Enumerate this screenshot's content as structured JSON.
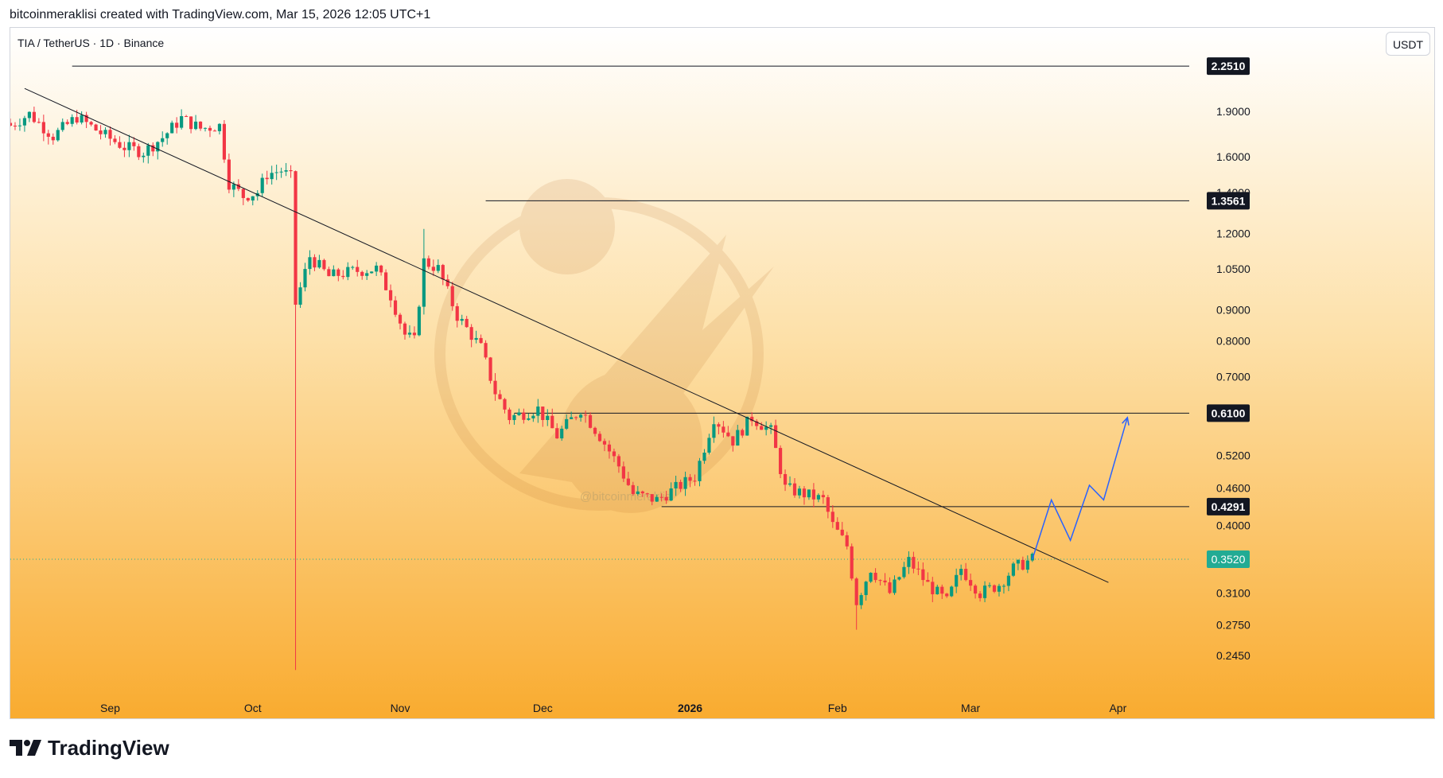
{
  "header": {
    "attribution": "bitcoinmeraklisi created with TradingView.com, Mar 15, 2026 12:05 UTC+1"
  },
  "chart": {
    "symbol": "TIA / TetherUS · 1D · Binance",
    "currency_button": "USDT",
    "watermark": "@bitcoinmeraklisi"
  },
  "footer": {
    "brand": "TradingView"
  },
  "colors": {
    "bg_top": "#ffffff",
    "bg_mid": "#fde0a8",
    "bg_bottom": "#f9ab2f",
    "up": "#089981",
    "down": "#f23645",
    "line": "#131722",
    "projection": "#2962ff",
    "current_price": "#22ab94"
  },
  "chart_data": {
    "type": "candlestick",
    "scale": "log",
    "ylim": [
      0.22,
      2.6
    ],
    "y_ticks": [
      "1.9000",
      "1.6000",
      "1.4000",
      "1.2000",
      "1.0500",
      "0.9000",
      "0.8000",
      "0.7000",
      "0.5200",
      "0.4600",
      "0.4000",
      "0.3100",
      "0.2750",
      "0.2450"
    ],
    "x_ticks": [
      {
        "label": "Sep",
        "date": "2025-09-01"
      },
      {
        "label": "Oct",
        "date": "2025-10-01"
      },
      {
        "label": "Nov",
        "date": "2025-11-01"
      },
      {
        "label": "Dec",
        "date": "2025-12-01"
      },
      {
        "label": "2026",
        "date": "2026-01-01",
        "bold": true
      },
      {
        "label": "Feb",
        "date": "2026-02-01"
      },
      {
        "label": "Mar",
        "date": "2026-03-01"
      },
      {
        "label": "Apr",
        "date": "2026-04-01"
      }
    ],
    "x_range": [
      "2025-08-11",
      "2026-04-16"
    ],
    "price_levels": [
      {
        "price": 2.251,
        "label": "2.2510",
        "from": "2025-08-24"
      },
      {
        "price": 1.3561,
        "label": "1.3561",
        "from": "2025-11-19"
      },
      {
        "price": 0.61,
        "label": "0.6100",
        "from": "2025-11-25"
      },
      {
        "price": 0.4291,
        "label": "0.4291",
        "from": "2025-12-26"
      }
    ],
    "current_price": {
      "price": 0.352,
      "label": "0.3520"
    },
    "trendline": {
      "start": {
        "date": "2025-08-14",
        "price": 2.07
      },
      "end": {
        "date": "2026-03-30",
        "price": 0.3225
      }
    },
    "projection": [
      {
        "date": "2026-03-14",
        "price": 0.352
      },
      {
        "date": "2026-03-18",
        "price": 0.44
      },
      {
        "date": "2026-03-22",
        "price": 0.378
      },
      {
        "date": "2026-03-26",
        "price": 0.465
      },
      {
        "date": "2026-03-29",
        "price": 0.44
      },
      {
        "date": "2026-04-03",
        "price": 0.6
      }
    ],
    "anchors": [
      {
        "date": "2025-08-11",
        "price": 1.8
      },
      {
        "date": "2025-08-15",
        "price": 1.88
      },
      {
        "date": "2025-08-20",
        "price": 1.73
      },
      {
        "date": "2025-08-25",
        "price": 1.86
      },
      {
        "date": "2025-08-30",
        "price": 1.75
      },
      {
        "date": "2025-09-04",
        "price": 1.66
      },
      {
        "date": "2025-09-08",
        "price": 1.63
      },
      {
        "date": "2025-09-12",
        "price": 1.72
      },
      {
        "date": "2025-09-16",
        "price": 1.85
      },
      {
        "date": "2025-09-20",
        "price": 1.78
      },
      {
        "date": "2025-09-24",
        "price": 1.8
      },
      {
        "date": "2025-09-26",
        "price": 1.45
      },
      {
        "date": "2025-09-29",
        "price": 1.38
      },
      {
        "date": "2025-10-02",
        "price": 1.4
      },
      {
        "date": "2025-10-04",
        "price": 1.5
      },
      {
        "date": "2025-10-07",
        "price": 1.52
      },
      {
        "date": "2025-10-09",
        "price": 1.48
      },
      {
        "date": "2025-10-10",
        "price": 0.92
      },
      {
        "date": "2025-10-13",
        "price": 1.1
      },
      {
        "date": "2025-10-17",
        "price": 1.02
      },
      {
        "date": "2025-10-22",
        "price": 1.04
      },
      {
        "date": "2025-10-27",
        "price": 1.05
      },
      {
        "date": "2025-10-30",
        "price": 0.95
      },
      {
        "date": "2025-11-02",
        "price": 0.82
      },
      {
        "date": "2025-11-04",
        "price": 0.8
      },
      {
        "date": "2025-11-06",
        "price": 1.08
      },
      {
        "date": "2025-11-09",
        "price": 1.05
      },
      {
        "date": "2025-11-13",
        "price": 0.88
      },
      {
        "date": "2025-11-18",
        "price": 0.78
      },
      {
        "date": "2025-11-21",
        "price": 0.66
      },
      {
        "date": "2025-11-24",
        "price": 0.6
      },
      {
        "date": "2025-11-30",
        "price": 0.62
      },
      {
        "date": "2025-12-04",
        "price": 0.56
      },
      {
        "date": "2025-12-09",
        "price": 0.62
      },
      {
        "date": "2025-12-13",
        "price": 0.56
      },
      {
        "date": "2025-12-17",
        "price": 0.5
      },
      {
        "date": "2025-12-20",
        "price": 0.45
      },
      {
        "date": "2025-12-25",
        "price": 0.44
      },
      {
        "date": "2025-12-29",
        "price": 0.46
      },
      {
        "date": "2026-01-02",
        "price": 0.48
      },
      {
        "date": "2026-01-06",
        "price": 0.6
      },
      {
        "date": "2026-01-10",
        "price": 0.55
      },
      {
        "date": "2026-01-14",
        "price": 0.6
      },
      {
        "date": "2026-01-18",
        "price": 0.57
      },
      {
        "date": "2026-01-21",
        "price": 0.46
      },
      {
        "date": "2026-01-25",
        "price": 0.45
      },
      {
        "date": "2026-01-29",
        "price": 0.44
      },
      {
        "date": "2026-01-31",
        "price": 0.4
      },
      {
        "date": "2026-02-03",
        "price": 0.37
      },
      {
        "date": "2026-02-05",
        "price": 0.3
      },
      {
        "date": "2026-02-08",
        "price": 0.34
      },
      {
        "date": "2026-02-12",
        "price": 0.31
      },
      {
        "date": "2026-02-16",
        "price": 0.35
      },
      {
        "date": "2026-02-20",
        "price": 0.32
      },
      {
        "date": "2026-02-24",
        "price": 0.3
      },
      {
        "date": "2026-02-27",
        "price": 0.34
      },
      {
        "date": "2026-03-03",
        "price": 0.31
      },
      {
        "date": "2026-03-07",
        "price": 0.32
      },
      {
        "date": "2026-03-10",
        "price": 0.34
      },
      {
        "date": "2026-03-14",
        "price": 0.352
      }
    ]
  }
}
